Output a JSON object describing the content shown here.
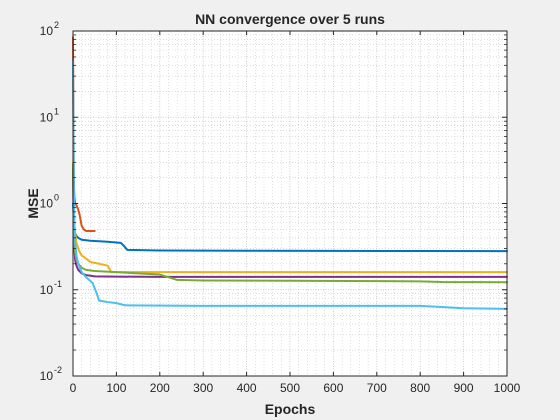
{
  "chart_data": {
    "type": "line",
    "title": "NN convergence over 5 runs",
    "xlabel": "Epochs",
    "ylabel": "MSE",
    "xlim": [
      0,
      1000
    ],
    "ylim": [
      0.01,
      100
    ],
    "yscale": "log",
    "grid": true,
    "minor_grid": true,
    "x_ticks": [
      0,
      100,
      200,
      300,
      400,
      500,
      600,
      700,
      800,
      900,
      1000
    ],
    "x_tick_labels": [
      "0",
      "100",
      "200",
      "300",
      "400",
      "500",
      "600",
      "700",
      "800",
      "900",
      "1000"
    ],
    "y_ticks": [
      0.01,
      0.1,
      1,
      10,
      100
    ],
    "y_tick_labels": [
      "10",
      "10",
      "10",
      "10",
      "10"
    ],
    "y_tick_exponents": [
      "-2",
      "-1",
      "0",
      "1",
      "2"
    ],
    "series": [
      {
        "color": "#0072BD",
        "x": [
          0,
          1,
          2,
          3,
          5,
          8,
          12,
          20,
          40,
          80,
          110,
          118,
          125,
          200,
          400,
          600,
          800,
          1000
        ],
        "y": [
          1.0,
          0.8,
          0.6,
          0.5,
          0.45,
          0.42,
          0.4,
          0.38,
          0.37,
          0.36,
          0.35,
          0.32,
          0.29,
          0.285,
          0.283,
          0.282,
          0.281,
          0.28
        ]
      },
      {
        "color": "#D95319",
        "x": [
          0,
          1,
          2,
          3,
          5,
          8,
          10,
          12,
          15,
          20,
          25,
          30,
          50
        ],
        "y": [
          85,
          10,
          2.0,
          1.2,
          1.0,
          0.95,
          0.9,
          0.85,
          0.75,
          0.55,
          0.5,
          0.48,
          0.48
        ]
      },
      {
        "color": "#EDB120",
        "x": [
          0,
          1,
          2,
          4,
          8,
          12,
          16,
          20,
          30,
          40,
          60,
          80,
          88,
          100,
          200,
          400,
          600,
          800,
          1000
        ],
        "y": [
          3.0,
          1.5,
          0.8,
          0.5,
          0.35,
          0.3,
          0.27,
          0.25,
          0.23,
          0.21,
          0.2,
          0.19,
          0.16,
          0.16,
          0.16,
          0.16,
          0.16,
          0.16,
          0.16
        ]
      },
      {
        "color": "#7E2F8E",
        "x": [
          0,
          1,
          2,
          3,
          5,
          8,
          12,
          20,
          30,
          50,
          100,
          200,
          400,
          600,
          800,
          1000
        ],
        "y": [
          2.5,
          1.0,
          0.45,
          0.3,
          0.22,
          0.19,
          0.17,
          0.155,
          0.148,
          0.143,
          0.142,
          0.141,
          0.141,
          0.141,
          0.141,
          0.141
        ]
      },
      {
        "color": "#77AC30",
        "x": [
          0,
          1,
          2,
          3,
          5,
          8,
          12,
          20,
          30,
          50,
          100,
          150,
          200,
          240,
          300,
          500,
          700,
          800,
          850,
          1000
        ],
        "y": [
          2.8,
          1.2,
          0.5,
          0.35,
          0.27,
          0.22,
          0.2,
          0.18,
          0.17,
          0.165,
          0.16,
          0.155,
          0.15,
          0.13,
          0.128,
          0.127,
          0.126,
          0.125,
          0.123,
          0.122
        ]
      },
      {
        "color": "#4DBEEE",
        "x": [
          0,
          1,
          2,
          3,
          5,
          8,
          12,
          20,
          30,
          45,
          55,
          60,
          80,
          100,
          120,
          300,
          600,
          800,
          850,
          900,
          1000
        ],
        "y": [
          45,
          8,
          1.5,
          0.6,
          0.35,
          0.25,
          0.2,
          0.16,
          0.14,
          0.12,
          0.09,
          0.075,
          0.072,
          0.07,
          0.066,
          0.065,
          0.065,
          0.065,
          0.063,
          0.061,
          0.06
        ]
      }
    ]
  }
}
